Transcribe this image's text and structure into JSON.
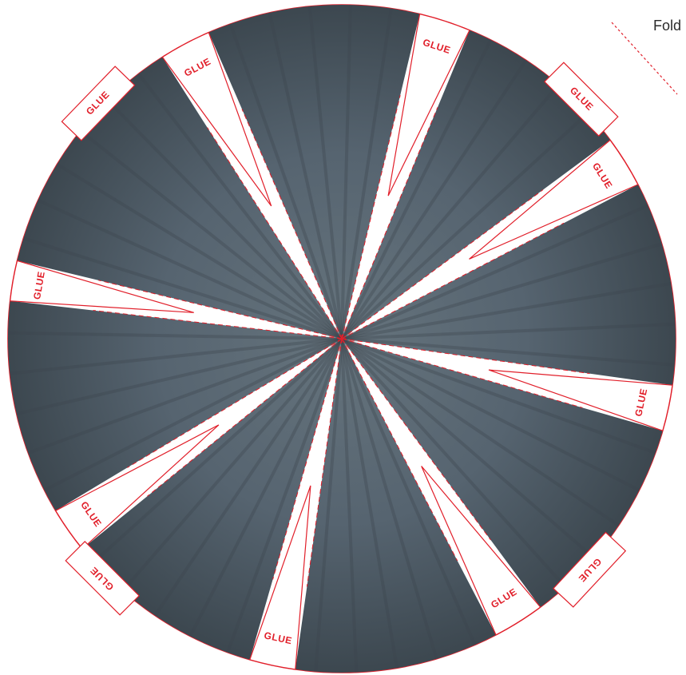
{
  "legend": {
    "label": "Fold"
  },
  "tabs": [
    {
      "label": "GLUE"
    },
    {
      "label": "GLUE"
    },
    {
      "label": "GLUE"
    },
    {
      "label": "GLUE"
    },
    {
      "label": "GLUE"
    },
    {
      "label": "GLUE"
    },
    {
      "label": "GLUE"
    },
    {
      "label": "GLUE"
    },
    {
      "label": "GLUE"
    },
    {
      "label": "GLUE"
    },
    {
      "label": "GLUE"
    },
    {
      "label": "GLUE"
    }
  ],
  "colors": {
    "accent": "#e11f2a",
    "sector_center": "#5f6d76",
    "sector_edge": "#3b464e",
    "background": "#ffffff"
  },
  "icons": {
    "fold_indicator": "dashed-line-icon"
  }
}
